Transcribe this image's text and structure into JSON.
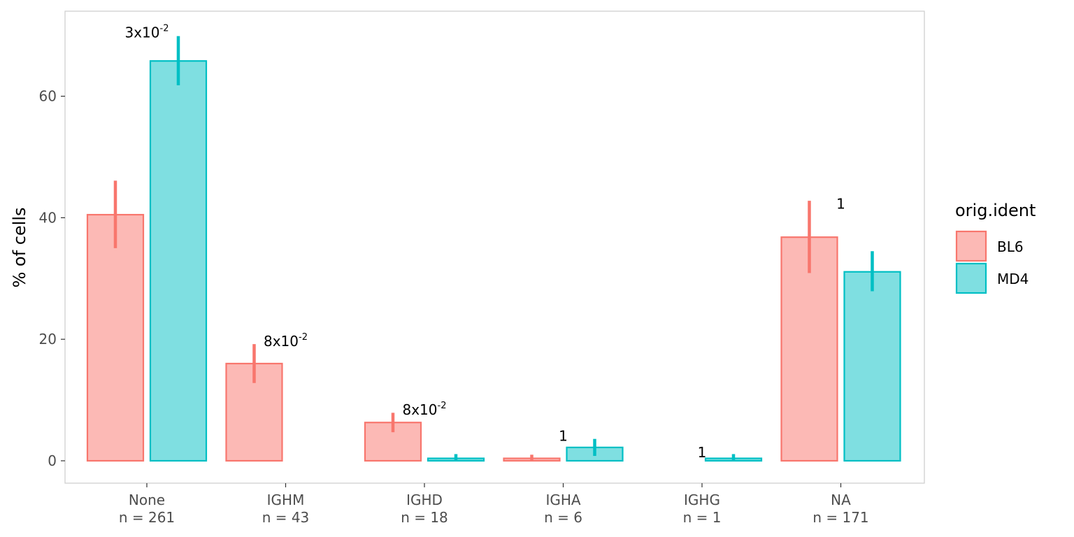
{
  "chart_data": {
    "type": "bar",
    "ylabel": "% of cells",
    "xlabel": "",
    "ylim": [
      -3.8,
      74
    ],
    "yticks": [
      0,
      20,
      40,
      60
    ],
    "categories": [
      {
        "name": "None",
        "count": "n = 261"
      },
      {
        "name": "IGHM",
        "count": "n = 43"
      },
      {
        "name": "IGHD",
        "count": "n = 18"
      },
      {
        "name": "IGHA",
        "count": "n = 6"
      },
      {
        "name": "IGHG",
        "count": "n = 1"
      },
      {
        "name": "NA",
        "count": "n = 171"
      }
    ],
    "series": [
      {
        "name": "BL6",
        "color": "#F8766D",
        "fill": "#FCB9B5",
        "values": [
          40.5,
          16.0,
          6.3,
          0.4,
          0.0,
          36.8
        ],
        "err_low": [
          35.0,
          12.8,
          4.7,
          0.0,
          0.0,
          30.9
        ],
        "err_high": [
          46.1,
          19.2,
          7.9,
          1.0,
          0.0,
          42.8
        ]
      },
      {
        "name": "MD4",
        "color": "#00BFC4",
        "fill": "#7FDFE1",
        "values": [
          65.8,
          0.0,
          0.4,
          2.2,
          0.4,
          31.1
        ],
        "err_low": [
          61.8,
          0.0,
          0.0,
          0.8,
          0.0,
          27.9
        ],
        "err_high": [
          69.9,
          0.0,
          1.1,
          3.6,
          1.1,
          34.5
        ]
      }
    ],
    "annotations": [
      {
        "category": "None",
        "base": "3x10",
        "exp": "-2",
        "y": 70.5
      },
      {
        "category": "IGHM",
        "base": "8x10",
        "exp": "-2",
        "y": 19.7
      },
      {
        "category": "IGHD",
        "base": "8x10",
        "exp": "-2",
        "y": 8.4
      },
      {
        "category": "IGHA",
        "base": "1",
        "exp": "",
        "y": 4.1
      },
      {
        "category": "IGHG",
        "base": "1",
        "exp": "",
        "y": 1.4
      },
      {
        "category": "NA",
        "base": "1",
        "exp": "",
        "y": 42.3
      }
    ],
    "legend": {
      "title": "orig.ident",
      "position": "right"
    },
    "grid": false
  }
}
